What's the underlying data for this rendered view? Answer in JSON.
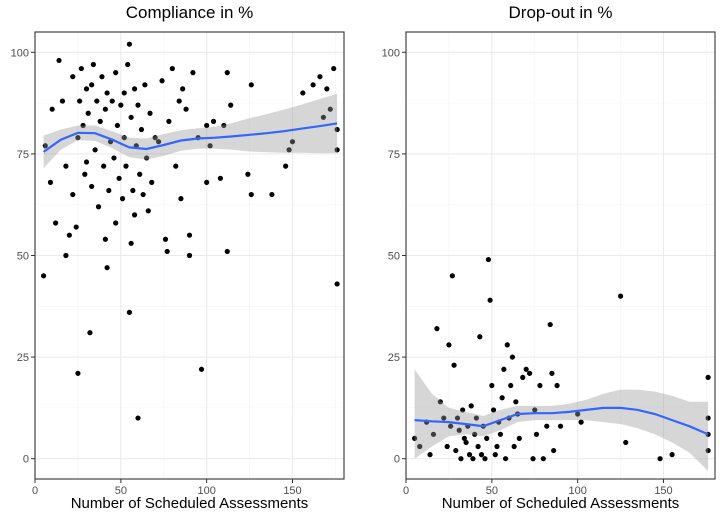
{
  "chart_data": [
    {
      "type": "scatter",
      "title": "Compliance in %",
      "xlabel": "Number of Scheduled Assessments",
      "ylabel": "",
      "xlim": [
        0,
        180
      ],
      "ylim": [
        -5,
        105
      ],
      "xticks": [
        0,
        50,
        100,
        150
      ],
      "yticks": [
        0,
        25,
        50,
        75,
        100
      ],
      "xtick_labels": [
        "0",
        "50",
        "100",
        "150"
      ],
      "ytick_labels": [
        "0",
        "25",
        "50",
        "75",
        "100"
      ],
      "grid": true,
      "points": [
        [
          5,
          45
        ],
        [
          6,
          77
        ],
        [
          9,
          68
        ],
        [
          10,
          86
        ],
        [
          12,
          58
        ],
        [
          14,
          98
        ],
        [
          16,
          88
        ],
        [
          18,
          50
        ],
        [
          18,
          72
        ],
        [
          20,
          55
        ],
        [
          22,
          65
        ],
        [
          22,
          94
        ],
        [
          24,
          57
        ],
        [
          25,
          21
        ],
        [
          25,
          79
        ],
        [
          26,
          88
        ],
        [
          27,
          96
        ],
        [
          28,
          82
        ],
        [
          29,
          70
        ],
        [
          30,
          73
        ],
        [
          30,
          91
        ],
        [
          31,
          85
        ],
        [
          32,
          31
        ],
        [
          33,
          67
        ],
        [
          33,
          92
        ],
        [
          34,
          97
        ],
        [
          35,
          76
        ],
        [
          36,
          88
        ],
        [
          37,
          62
        ],
        [
          38,
          83
        ],
        [
          39,
          94
        ],
        [
          40,
          72
        ],
        [
          41,
          54
        ],
        [
          41,
          86
        ],
        [
          42,
          47
        ],
        [
          42,
          90
        ],
        [
          43,
          66
        ],
        [
          44,
          78
        ],
        [
          45,
          88
        ],
        [
          46,
          74
        ],
        [
          47,
          58
        ],
        [
          47,
          95
        ],
        [
          48,
          82
        ],
        [
          49,
          69
        ],
        [
          50,
          87
        ],
        [
          51,
          64
        ],
        [
          52,
          90
        ],
        [
          52,
          79
        ],
        [
          53,
          72
        ],
        [
          54,
          97
        ],
        [
          55,
          102
        ],
        [
          55,
          36
        ],
        [
          56,
          53
        ],
        [
          56,
          84
        ],
        [
          57,
          66
        ],
        [
          58,
          91
        ],
        [
          58,
          60
        ],
        [
          59,
          77
        ],
        [
          60,
          10
        ],
        [
          60,
          87
        ],
        [
          61,
          70
        ],
        [
          62,
          81
        ],
        [
          63,
          65
        ],
        [
          64,
          92
        ],
        [
          65,
          74
        ],
        [
          66,
          61
        ],
        [
          67,
          85
        ],
        [
          68,
          68
        ],
        [
          70,
          79
        ],
        [
          72,
          78
        ],
        [
          74,
          93
        ],
        [
          76,
          54
        ],
        [
          77,
          51
        ],
        [
          78,
          83
        ],
        [
          80,
          96
        ],
        [
          82,
          72
        ],
        [
          84,
          88
        ],
        [
          85,
          64
        ],
        [
          86,
          91
        ],
        [
          88,
          86
        ],
        [
          90,
          50
        ],
        [
          90,
          55
        ],
        [
          92,
          95
        ],
        [
          95,
          79
        ],
        [
          97,
          22
        ],
        [
          100,
          82
        ],
        [
          100,
          68
        ],
        [
          102,
          77
        ],
        [
          104,
          83
        ],
        [
          108,
          69
        ],
        [
          110,
          82
        ],
        [
          112,
          51
        ],
        [
          112,
          95
        ],
        [
          114,
          87
        ],
        [
          124,
          70
        ],
        [
          126,
          65
        ],
        [
          126,
          92
        ],
        [
          138,
          65
        ],
        [
          146,
          72
        ],
        [
          148,
          76
        ],
        [
          150,
          78
        ],
        [
          156,
          90
        ],
        [
          162,
          92
        ],
        [
          166,
          94
        ],
        [
          168,
          84
        ],
        [
          170,
          91
        ],
        [
          172,
          86
        ],
        [
          174,
          96
        ],
        [
          176,
          81
        ],
        [
          176,
          43
        ],
        [
          176,
          76
        ]
      ],
      "smooth": {
        "x": [
          5,
          15,
          25,
          35,
          45,
          55,
          65,
          75,
          85,
          95,
          105,
          115,
          125,
          135,
          145,
          155,
          165,
          176
        ],
        "y": [
          75.5,
          78.5,
          80.2,
          80.1,
          78.5,
          76.6,
          76.2,
          77.2,
          78.3,
          78.8,
          79,
          79.3,
          79.7,
          80.1,
          80.6,
          81.2,
          81.8,
          82.5
        ],
        "lower": [
          71.5,
          76,
          78.4,
          78.2,
          76.4,
          74.2,
          73.6,
          74.5,
          75.8,
          76.3,
          76.3,
          76,
          75.6,
          75.4,
          75.3,
          75.3,
          75.2,
          75.2
        ],
        "upper": [
          79.5,
          81,
          82,
          82,
          80.6,
          79,
          78.8,
          79.9,
          80.8,
          81.3,
          81.7,
          82.6,
          83.8,
          84.8,
          85.9,
          87.1,
          88.4,
          89.8
        ],
        "color": "#3366ff"
      },
      "point_color": "#000000"
    },
    {
      "type": "scatter",
      "title": "Drop-out in %",
      "xlabel": "Number of Scheduled Assessments",
      "ylabel": "",
      "xlim": [
        0,
        180
      ],
      "ylim": [
        -5,
        105
      ],
      "xticks": [
        0,
        50,
        100,
        150
      ],
      "yticks": [
        0,
        25,
        50,
        75,
        100
      ],
      "xtick_labels": [
        "0",
        "50",
        "100",
        "150"
      ],
      "ytick_labels": [
        "0",
        "25",
        "50",
        "75",
        "100"
      ],
      "grid": true,
      "points": [
        [
          5,
          5
        ],
        [
          8,
          3
        ],
        [
          12,
          9
        ],
        [
          14,
          1
        ],
        [
          16,
          6
        ],
        [
          18,
          32
        ],
        [
          20,
          14
        ],
        [
          22,
          10
        ],
        [
          24,
          3
        ],
        [
          25,
          28
        ],
        [
          26,
          8
        ],
        [
          27,
          45
        ],
        [
          28,
          23
        ],
        [
          29,
          2
        ],
        [
          30,
          10
        ],
        [
          31,
          7
        ],
        [
          32,
          0
        ],
        [
          33,
          12
        ],
        [
          34,
          5
        ],
        [
          35,
          4
        ],
        [
          36,
          8
        ],
        [
          37,
          1
        ],
        [
          38,
          13
        ],
        [
          39,
          0
        ],
        [
          40,
          6
        ],
        [
          41,
          10
        ],
        [
          42,
          3
        ],
        [
          43,
          30
        ],
        [
          44,
          1
        ],
        [
          45,
          8
        ],
        [
          46,
          0
        ],
        [
          47,
          5
        ],
        [
          48,
          49
        ],
        [
          49,
          39
        ],
        [
          50,
          18
        ],
        [
          51,
          12
        ],
        [
          52,
          1
        ],
        [
          53,
          3
        ],
        [
          54,
          9
        ],
        [
          55,
          6
        ],
        [
          56,
          15
        ],
        [
          57,
          22
        ],
        [
          58,
          0
        ],
        [
          59,
          28
        ],
        [
          60,
          10
        ],
        [
          61,
          18
        ],
        [
          62,
          25
        ],
        [
          63,
          3
        ],
        [
          64,
          14
        ],
        [
          65,
          11
        ],
        [
          66,
          5
        ],
        [
          68,
          20
        ],
        [
          70,
          22
        ],
        [
          72,
          21
        ],
        [
          74,
          0
        ],
        [
          75,
          12
        ],
        [
          76,
          6
        ],
        [
          78,
          18
        ],
        [
          80,
          0
        ],
        [
          82,
          8
        ],
        [
          84,
          33
        ],
        [
          85,
          21
        ],
        [
          86,
          2
        ],
        [
          88,
          18
        ],
        [
          90,
          8
        ],
        [
          100,
          11
        ],
        [
          102,
          9
        ],
        [
          125,
          40
        ],
        [
          128,
          4
        ],
        [
          148,
          0
        ],
        [
          155,
          1
        ],
        [
          176,
          20
        ],
        [
          176,
          10
        ],
        [
          176,
          6
        ],
        [
          176,
          2
        ]
      ],
      "smooth": {
        "x": [
          5,
          15,
          25,
          35,
          45,
          55,
          65,
          75,
          85,
          95,
          105,
          115,
          125,
          135,
          145,
          155,
          165,
          176
        ],
        "y": [
          9.5,
          9.2,
          9,
          8.5,
          8,
          9.5,
          11,
          11.2,
          11.2,
          11.5,
          12,
          12.5,
          12.5,
          12,
          11,
          9.5,
          8,
          6
        ],
        "lower": [
          0,
          3,
          5.5,
          6,
          5.5,
          7,
          9,
          9.5,
          9.5,
          9.5,
          9.5,
          9,
          8.5,
          7.5,
          6,
          4,
          1.5,
          -3
        ],
        "upper": [
          22,
          16,
          12.5,
          11.5,
          10.5,
          12,
          13,
          13,
          13,
          13.5,
          14.5,
          16,
          17,
          17,
          16.5,
          15.5,
          14,
          14
        ],
        "color": "#3366ff"
      },
      "point_color": "#000000"
    }
  ]
}
